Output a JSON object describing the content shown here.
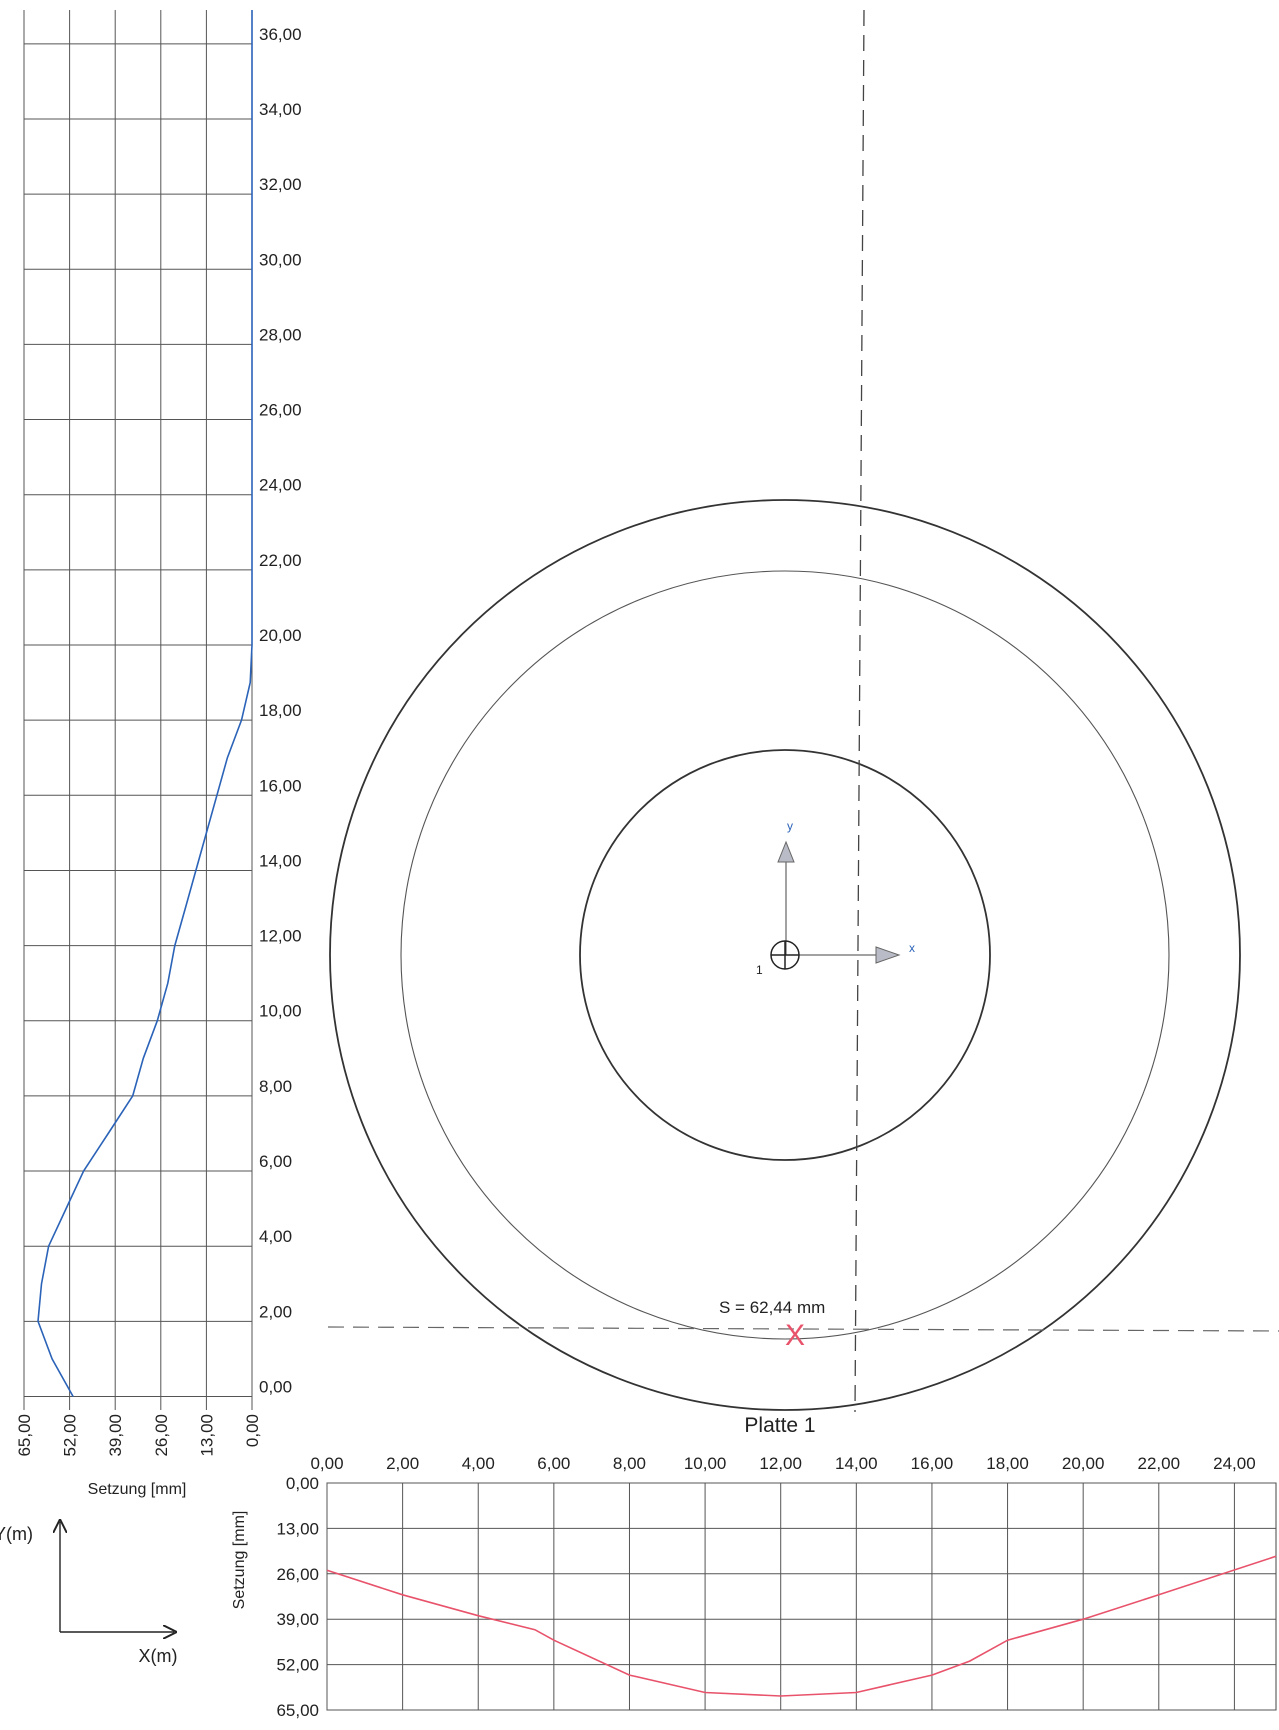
{
  "chart_data": [
    {
      "type": "line",
      "orientation": "vertical-profile",
      "xlabel": "Setzung [mm]",
      "x_ticks": [
        "65,00",
        "52,00",
        "39,00",
        "26,00",
        "13,00",
        "0,00"
      ],
      "y_ticks": [
        "0,00",
        "2,00",
        "4,00",
        "6,00",
        "8,00",
        "10,00",
        "12,00",
        "14,00",
        "16,00",
        "18,00",
        "20,00",
        "22,00",
        "24,00",
        "26,00",
        "28,00",
        "30,00",
        "32,00",
        "34,00",
        "36,00"
      ],
      "xlim": [
        65,
        0
      ],
      "ylim": [
        -0.2,
        36.9
      ],
      "series": [
        {
          "color": "#2b63b8",
          "points": [
            {
              "y": 0.0,
              "x": 51.0
            },
            {
              "y": 1.0,
              "x": 57.0
            },
            {
              "y": 2.0,
              "x": 61.0
            },
            {
              "y": 3.0,
              "x": 60.0
            },
            {
              "y": 4.0,
              "x": 58.0
            },
            {
              "y": 5.0,
              "x": 53.0
            },
            {
              "y": 6.0,
              "x": 48.0
            },
            {
              "y": 7.0,
              "x": 41.0
            },
            {
              "y": 8.0,
              "x": 34.0
            },
            {
              "y": 9.0,
              "x": 31.0
            },
            {
              "y": 10.0,
              "x": 27.0
            },
            {
              "y": 11.0,
              "x": 24.0
            },
            {
              "y": 12.0,
              "x": 22.0
            },
            {
              "y": 13.0,
              "x": 19.0
            },
            {
              "y": 14.0,
              "x": 16.0
            },
            {
              "y": 15.0,
              "x": 13.0
            },
            {
              "y": 16.0,
              "x": 10.0
            },
            {
              "y": 17.0,
              "x": 7.0
            },
            {
              "y": 18.0,
              "x": 3.0
            },
            {
              "y": 19.0,
              "x": 0.5
            },
            {
              "y": 20.0,
              "x": 0.0
            },
            {
              "y": 36.9,
              "x": 0.0
            }
          ]
        }
      ]
    },
    {
      "type": "line",
      "xlabel": "",
      "ylabel": "Setzung [mm]",
      "x_ticks": [
        "0,00",
        "2,00",
        "4,00",
        "6,00",
        "8,00",
        "10,00",
        "12,00",
        "14,00",
        "16,00",
        "18,00",
        "20,00",
        "22,00",
        "24,00"
      ],
      "y_ticks": [
        "0,00",
        "13,00",
        "26,00",
        "39,00",
        "52,00",
        "65,00"
      ],
      "xlim": [
        0,
        25.1
      ],
      "ylim": [
        0,
        65
      ],
      "series": [
        {
          "color": "#e8536b",
          "points": [
            {
              "x": 0.0,
              "y": 25.0
            },
            {
              "x": 2.0,
              "y": 32.0
            },
            {
              "x": 4.0,
              "y": 38.0
            },
            {
              "x": 5.5,
              "y": 42.0
            },
            {
              "x": 6.0,
              "y": 45.0
            },
            {
              "x": 8.0,
              "y": 55.0
            },
            {
              "x": 10.0,
              "y": 60.0
            },
            {
              "x": 12.0,
              "y": 61.0
            },
            {
              "x": 14.0,
              "y": 60.0
            },
            {
              "x": 16.0,
              "y": 55.0
            },
            {
              "x": 17.0,
              "y": 51.0
            },
            {
              "x": 18.0,
              "y": 45.0
            },
            {
              "x": 20.0,
              "y": 39.0
            },
            {
              "x": 22.0,
              "y": 32.0
            },
            {
              "x": 25.1,
              "y": 21.0
            }
          ]
        }
      ]
    }
  ],
  "plan_view": {
    "title": "Platte 1",
    "settlement_label": "S =  62,44 mm",
    "marker_symbol": "X",
    "point_number": "1",
    "axis_x_label": "x",
    "axis_y_label": "y",
    "coordinate_axis_x": "X(m)",
    "coordinate_axis_y": "Y(m)",
    "marker_color": "#e8536b",
    "axis_arrow_color": "#2b63b8",
    "circle_icon": "center-crosshair-icon",
    "arrow_icon": "axis-arrow-icon"
  }
}
